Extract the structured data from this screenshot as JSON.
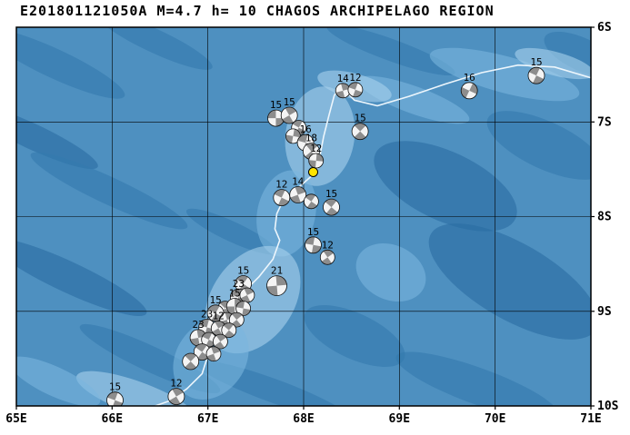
{
  "title": "E201801121050A M=4.7 h= 10 CHAGOS ARCHIPELAGO REGION",
  "colors": {
    "ocean_base": "#4e90c0",
    "ocean_dark": "#3379ad",
    "ocean_darker": "#2a6da2",
    "ocean_light": "#79b5de",
    "ocean_lighter": "#a9d2ec",
    "boundary_line": "#edf6fc",
    "beachball_fill": "#8d8d8d",
    "beachball_bg": "#f4f4f4",
    "main_event": "#ffe400",
    "frame": "#000000"
  },
  "map": {
    "lon_min": 65,
    "lon_max": 71,
    "lat_min": 6,
    "lat_max": 10,
    "grid_lons": [
      66,
      67,
      68,
      69,
      70
    ],
    "grid_lats": [
      7,
      8,
      9
    ],
    "lon_labels": [
      {
        "text": "65E",
        "lon": 65
      },
      {
        "text": "66E",
        "lon": 66
      },
      {
        "text": "67E",
        "lon": 67
      },
      {
        "text": "68E",
        "lon": 68
      },
      {
        "text": "69E",
        "lon": 69
      },
      {
        "text": "70E",
        "lon": 70
      },
      {
        "text": "71E",
        "lon": 71
      }
    ],
    "lat_labels": [
      {
        "text": "6S",
        "lat": 6
      },
      {
        "text": "7S",
        "lat": 7
      },
      {
        "text": "8S",
        "lat": 8
      },
      {
        "text": "9S",
        "lat": 9
      },
      {
        "text": "10S",
        "lat": 10
      }
    ]
  },
  "main_event": {
    "lon": 68.1,
    "lat": 7.53
  },
  "plate_boundary": [
    [
      71.05,
      6.55
    ],
    [
      70.62,
      6.42
    ],
    [
      70.24,
      6.4
    ],
    [
      69.86,
      6.48
    ],
    [
      69.48,
      6.6
    ],
    [
      69.1,
      6.73
    ],
    [
      68.77,
      6.83
    ],
    [
      68.53,
      6.77
    ],
    [
      68.39,
      6.62
    ],
    [
      68.32,
      6.72
    ],
    [
      68.27,
      6.91
    ],
    [
      68.21,
      7.15
    ],
    [
      68.17,
      7.36
    ],
    [
      68.13,
      7.53
    ],
    [
      67.96,
      7.68
    ],
    [
      67.79,
      7.82
    ],
    [
      67.72,
      7.97
    ],
    [
      67.7,
      8.13
    ],
    [
      67.75,
      8.25
    ],
    [
      67.68,
      8.45
    ],
    [
      67.53,
      8.64
    ],
    [
      67.37,
      8.8
    ],
    [
      67.22,
      8.97
    ],
    [
      67.11,
      9.15
    ],
    [
      67.03,
      9.31
    ],
    [
      66.99,
      9.5
    ],
    [
      66.94,
      9.66
    ],
    [
      66.78,
      9.82
    ],
    [
      66.59,
      9.95
    ],
    [
      66.45,
      10.0
    ]
  ],
  "events": [
    {
      "d": "15",
      "lon": 70.43,
      "lat": 6.51,
      "rot": 25,
      "r": 9
    },
    {
      "d": "16",
      "lon": 69.73,
      "lat": 6.67,
      "rot": 115,
      "r": 9
    },
    {
      "d": "14",
      "lon": 68.41,
      "lat": 6.67,
      "rot": 75,
      "r": 8
    },
    {
      "d": "12",
      "lon": 68.54,
      "lat": 6.66,
      "rot": 20,
      "r": 8
    },
    {
      "d": "15",
      "lon": 68.59,
      "lat": 7.1,
      "rot": 45,
      "r": 9
    },
    {
      "d": "15",
      "lon": 67.71,
      "lat": 6.96,
      "rot": 0,
      "r": 9
    },
    {
      "d": "15",
      "lon": 67.85,
      "lat": 6.93,
      "rot": 60,
      "r": 9
    },
    {
      "d": "",
      "lon": 67.95,
      "lat": 7.06,
      "rot": 30,
      "r": 8
    },
    {
      "d": "",
      "lon": 67.89,
      "lat": 7.15,
      "rot": 100,
      "r": 8
    },
    {
      "d": "16",
      "lon": 68.02,
      "lat": 7.22,
      "rot": 15,
      "r": 9
    },
    {
      "d": "18",
      "lon": 68.08,
      "lat": 7.31,
      "rot": 50,
      "r": 9
    },
    {
      "d": "12",
      "lon": 68.13,
      "lat": 7.41,
      "rot": 95,
      "r": 8
    },
    {
      "d": "12",
      "lon": 67.77,
      "lat": 7.8,
      "rot": 25,
      "r": 9
    },
    {
      "d": "14",
      "lon": 67.94,
      "lat": 7.77,
      "rot": 70,
      "r": 9
    },
    {
      "d": "",
      "lon": 68.08,
      "lat": 7.84,
      "rot": 35,
      "r": 8
    },
    {
      "d": "15",
      "lon": 68.29,
      "lat": 7.9,
      "rot": 40,
      "r": 9
    },
    {
      "d": "15",
      "lon": 68.1,
      "lat": 8.3,
      "rot": 10,
      "r": 9
    },
    {
      "d": "12",
      "lon": 68.25,
      "lat": 8.43,
      "rot": 55,
      "r": 8
    },
    {
      "d": "15",
      "lon": 67.37,
      "lat": 8.71,
      "rot": 35,
      "r": 9
    },
    {
      "d": "21",
      "lon": 67.72,
      "lat": 8.73,
      "rot": 85,
      "r": 11
    },
    {
      "d": "23",
      "lon": 67.32,
      "lat": 8.85,
      "rot": 20,
      "r": 9
    },
    {
      "d": "",
      "lon": 67.41,
      "lat": 8.83,
      "rot": 65,
      "r": 8
    },
    {
      "d": "",
      "lon": 67.18,
      "lat": 8.97,
      "rot": 45,
      "r": 8
    },
    {
      "d": "15",
      "lon": 67.28,
      "lat": 8.95,
      "rot": 90,
      "r": 9
    },
    {
      "d": "",
      "lon": 67.37,
      "lat": 8.97,
      "rot": 10,
      "r": 8
    },
    {
      "d": "15",
      "lon": 67.08,
      "lat": 9.02,
      "rot": 30,
      "r": 9
    },
    {
      "d": "",
      "lon": 67.2,
      "lat": 9.09,
      "rot": 75,
      "r": 8
    },
    {
      "d": "",
      "lon": 67.3,
      "lat": 9.09,
      "rot": 50,
      "r": 8
    },
    {
      "d": "23",
      "lon": 66.99,
      "lat": 9.17,
      "rot": 15,
      "r": 9
    },
    {
      "d": "12",
      "lon": 67.11,
      "lat": 9.18,
      "rot": 60,
      "r": 8
    },
    {
      "d": "",
      "lon": 67.22,
      "lat": 9.2,
      "rot": 40,
      "r": 8
    },
    {
      "d": "23",
      "lon": 66.9,
      "lat": 9.28,
      "rot": 80,
      "r": 9
    },
    {
      "d": "",
      "lon": 67.01,
      "lat": 9.3,
      "rot": 25,
      "r": 8
    },
    {
      "d": "",
      "lon": 67.13,
      "lat": 9.32,
      "rot": 55,
      "r": 8
    },
    {
      "d": "",
      "lon": 66.94,
      "lat": 9.43,
      "rot": 35,
      "r": 9
    },
    {
      "d": "",
      "lon": 67.06,
      "lat": 9.45,
      "rot": 70,
      "r": 8
    },
    {
      "d": "",
      "lon": 66.82,
      "lat": 9.53,
      "rot": 45,
      "r": 9
    },
    {
      "d": "15",
      "lon": 66.03,
      "lat": 9.94,
      "rot": 20,
      "r": 9
    },
    {
      "d": "12",
      "lon": 66.67,
      "lat": 9.9,
      "rot": 60,
      "r": 9
    }
  ]
}
